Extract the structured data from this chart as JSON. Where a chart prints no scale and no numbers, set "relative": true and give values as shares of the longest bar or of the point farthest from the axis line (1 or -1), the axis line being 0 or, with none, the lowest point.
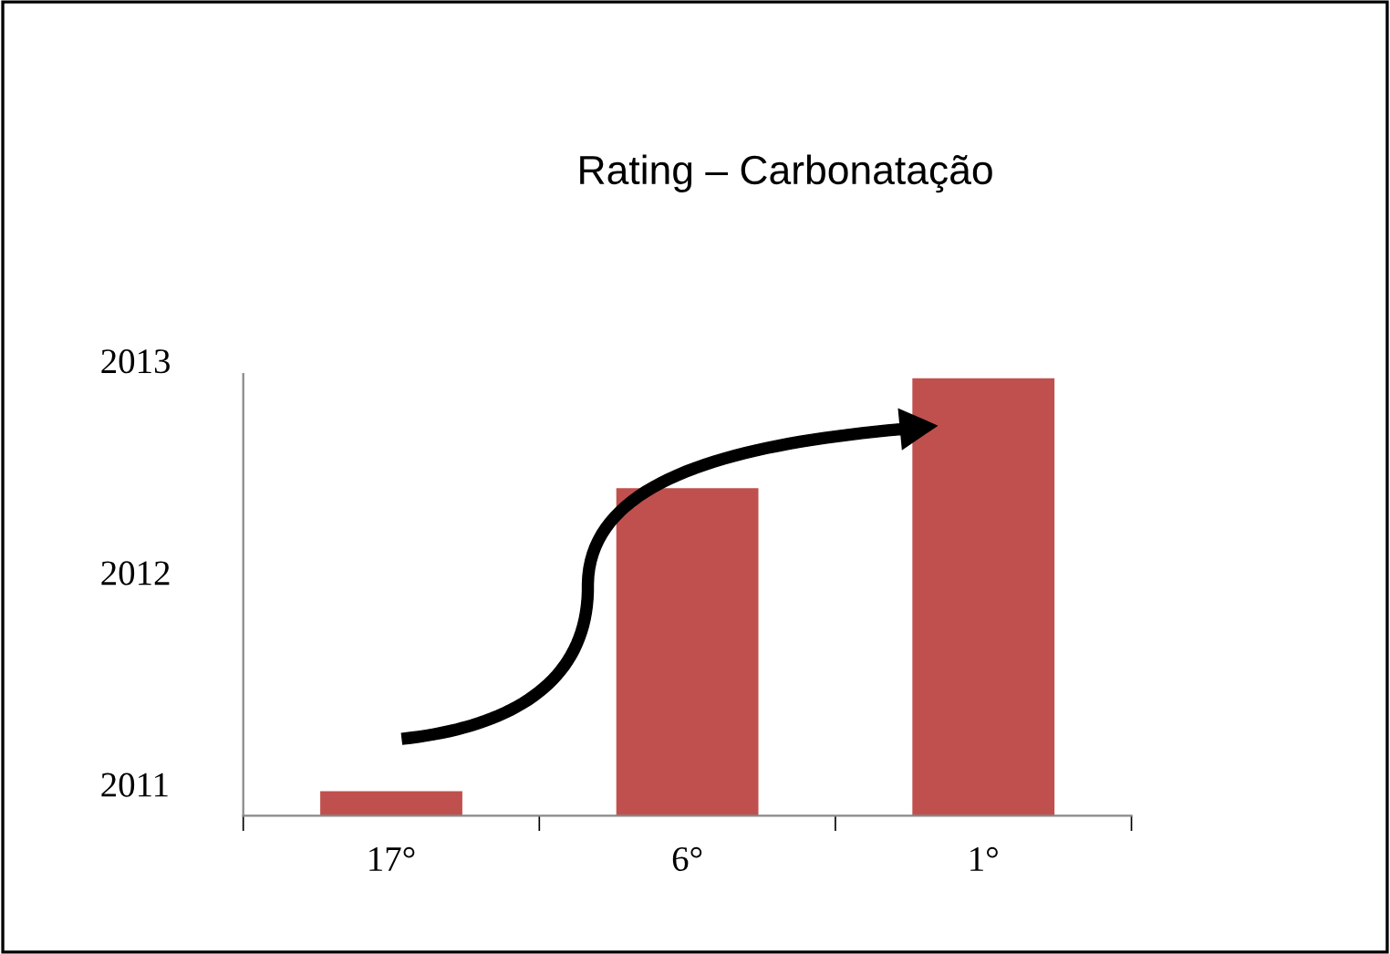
{
  "chart_data": {
    "type": "bar",
    "title": "Rating – Carbonatação",
    "categories": [
      "17°",
      "6°",
      "1°"
    ],
    "values": [
      0.056,
      0.749,
      1
    ],
    "color": "#c0504d",
    "relative": true,
    "annotations": [
      "2013",
      "2012",
      "2011"
    ],
    "grid": false,
    "legend": false
  }
}
